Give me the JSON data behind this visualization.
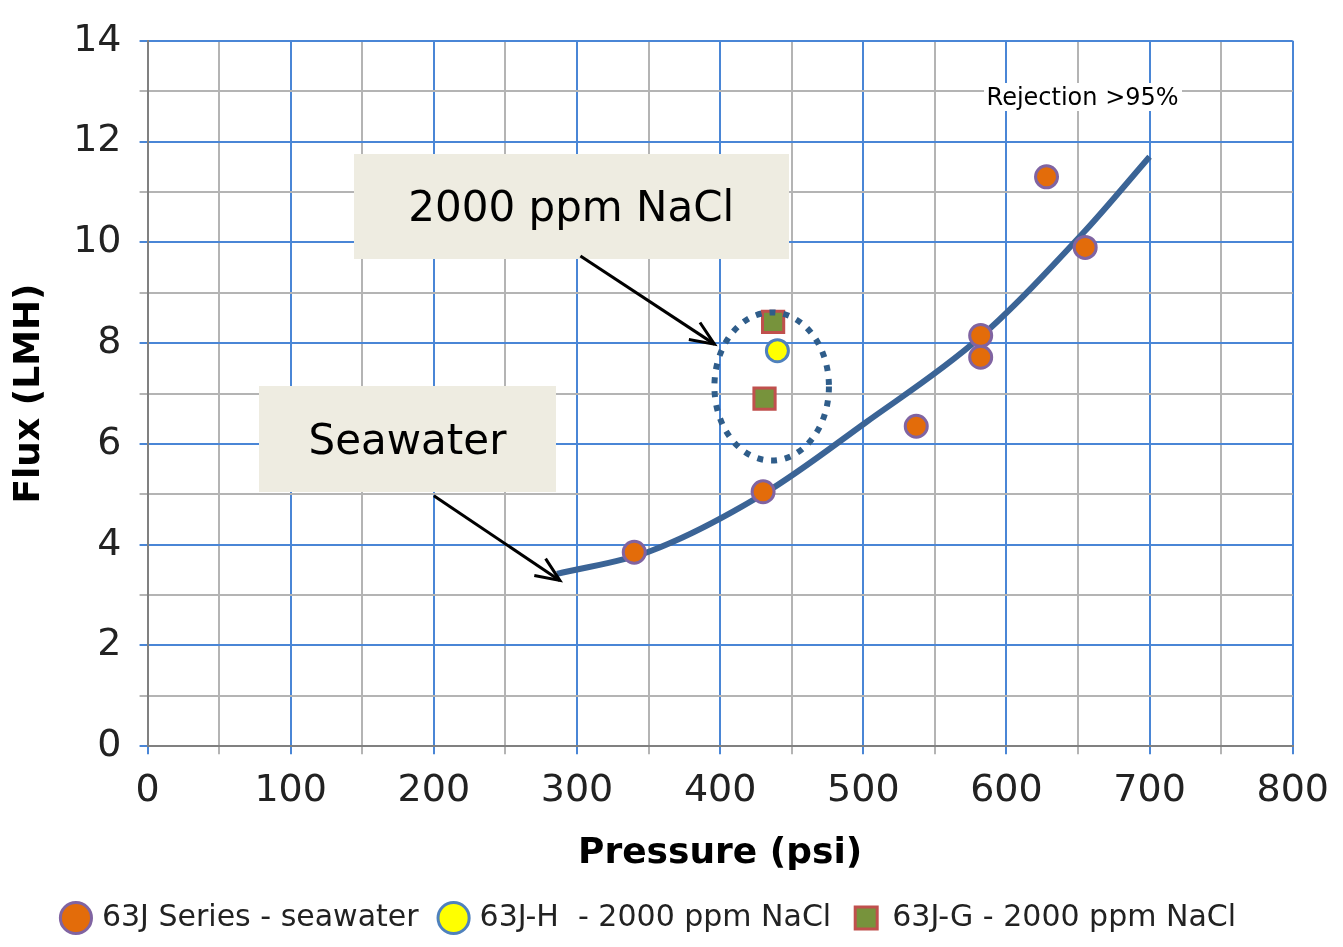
{
  "chart_data": {
    "type": "scatter",
    "xlabel": "Pressure (psi)",
    "ylabel": "Flux (LMH)",
    "xlim": [
      0,
      800
    ],
    "ylim": [
      0,
      14
    ],
    "xticks": [
      0,
      {
        "value": 50,
        "label": null
      },
      100,
      {
        "value": 150,
        "label": null
      },
      200,
      {
        "value": 250,
        "label": null
      },
      300,
      {
        "value": 350,
        "label": null
      },
      400,
      {
        "value": 450,
        "label": null
      },
      500,
      {
        "value": 550,
        "label": null
      },
      600,
      {
        "value": 650,
        "label": null
      },
      700,
      {
        "value": 750,
        "label": null
      },
      800
    ],
    "yticks": [
      0,
      {
        "value": 1,
        "label": null
      },
      2,
      {
        "value": 3,
        "label": null
      },
      4,
      {
        "value": 5,
        "label": null
      },
      6,
      {
        "value": 7,
        "label": null
      },
      8,
      {
        "value": 9,
        "label": null
      },
      10,
      {
        "value": 11,
        "label": null
      },
      12,
      {
        "value": 13,
        "label": null
      },
      14
    ],
    "grid": true,
    "legend": "bottom",
    "annotations": [
      "Rejection >95%",
      "2000 ppm NaCl",
      "Seawater"
    ],
    "series": [
      {
        "name": "63J Series - seawater",
        "marker": "circle",
        "color": "#e36c0a",
        "x": [
          340,
          430,
          537,
          582,
          582,
          628,
          655
        ],
        "values": [
          3.85,
          5.05,
          6.35,
          8.15,
          7.72,
          11.3,
          9.9
        ]
      },
      {
        "name": "63J-H  - 2000 ppm NaCl",
        "marker": "circle",
        "color": "#ffff00",
        "x": [
          440
        ],
        "values": [
          7.85
        ]
      },
      {
        "name": "63J-G - 2000 ppm NaCl",
        "marker": "square",
        "color": "#77933c",
        "x": [
          437,
          431
        ],
        "values": [
          8.42,
          6.9
        ]
      },
      {
        "type": "line",
        "marker": "none",
        "color": "#3b6496",
        "x": [
          286,
          351,
          431,
          501,
          581,
          655,
          700
        ],
        "values": [
          3.42,
          3.87,
          5.02,
          6.41,
          8.1,
          10.23,
          11.7
        ]
      }
    ]
  }
}
